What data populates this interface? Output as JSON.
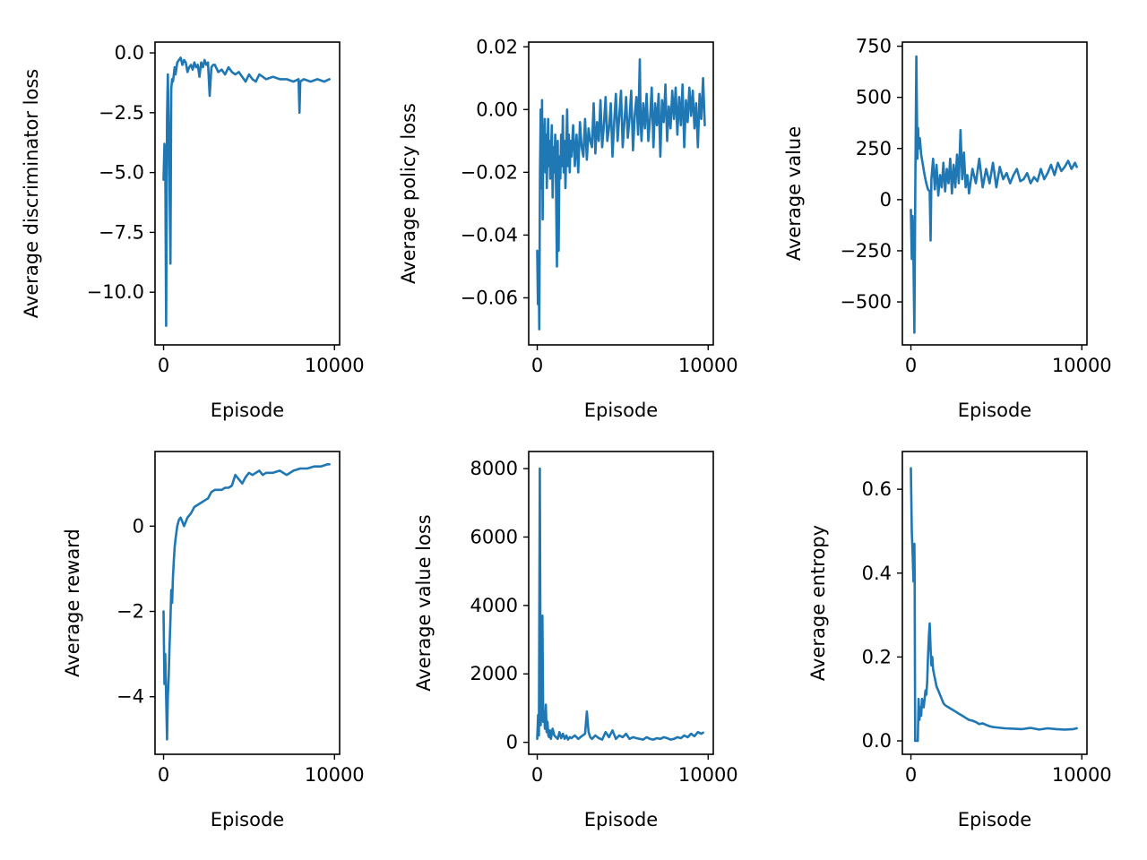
{
  "chart_data": [
    {
      "type": "line",
      "xlabel": "Episode",
      "ylabel": "Average discriminator loss",
      "xlim": [
        -500,
        10300
      ],
      "ylim": [
        -12.2,
        0.45
      ],
      "xticks": [
        0,
        10000
      ],
      "xtick_labels": [
        "0",
        "10000"
      ],
      "yticks": [
        0,
        -2.5,
        -5,
        -7.5,
        -10
      ],
      "ytick_labels": [
        "0.0",
        "−2.5",
        "−5.0",
        "−7.5",
        "−10.0"
      ],
      "color": "#1f77b4",
      "series": [
        {
          "x": [
            0,
            50,
            100,
            150,
            200,
            250,
            300,
            350,
            400,
            450,
            500,
            550,
            600,
            650,
            700,
            800,
            900,
            1000,
            1100,
            1200,
            1300,
            1400,
            1500,
            1600,
            1700,
            1800,
            1900,
            2000,
            2100,
            2200,
            2300,
            2400,
            2500,
            2600,
            2700,
            2800,
            2900,
            3000,
            3200,
            3400,
            3600,
            3800,
            4000,
            4200,
            4400,
            4600,
            4800,
            5000,
            5200,
            5400,
            5600,
            5800,
            6000,
            6400,
            6800,
            7200,
            7600,
            7900,
            7950,
            8000,
            8200,
            8600,
            9000,
            9400,
            9700
          ],
          "y": [
            -5.3,
            -3.8,
            -4.2,
            -11.4,
            -2.7,
            -0.9,
            -3.0,
            -5.5,
            -8.8,
            -1.5,
            -1.1,
            -1.2,
            -0.9,
            -0.6,
            -0.9,
            -0.4,
            -0.3,
            -0.2,
            -0.5,
            -0.3,
            -0.4,
            -0.8,
            -0.6,
            -0.5,
            -0.7,
            -0.4,
            -0.6,
            -0.5,
            -1.0,
            -0.4,
            -0.6,
            -0.3,
            -0.5,
            -0.4,
            -1.8,
            -0.6,
            -0.5,
            -0.5,
            -0.8,
            -0.7,
            -0.9,
            -0.6,
            -0.8,
            -0.9,
            -0.8,
            -1.0,
            -1.2,
            -0.9,
            -1.1,
            -1.2,
            -0.9,
            -1.0,
            -1.1,
            -1.0,
            -1.1,
            -1.1,
            -1.2,
            -1.1,
            -2.5,
            -1.2,
            -1.1,
            -1.2,
            -1.1,
            -1.2,
            -1.1
          ]
        }
      ]
    },
    {
      "type": "line",
      "xlabel": "Episode",
      "ylabel": "Average policy loss",
      "xlim": [
        -500,
        10300
      ],
      "ylim": [
        -0.075,
        0.0215
      ],
      "xticks": [
        0,
        10000
      ],
      "xtick_labels": [
        "0",
        "10000"
      ],
      "yticks": [
        0.02,
        0,
        -0.02,
        -0.04,
        -0.06
      ],
      "ytick_labels": [
        "0.02",
        "0.00",
        "−0.02",
        "−0.04",
        "−0.06"
      ],
      "color": "#1f77b4",
      "series": [
        {
          "x": [
            0,
            40,
            80,
            120,
            160,
            200,
            240,
            280,
            320,
            360,
            400,
            440,
            480,
            520,
            560,
            600,
            640,
            680,
            720,
            760,
            800,
            850,
            900,
            950,
            1000,
            1050,
            1100,
            1150,
            1200,
            1250,
            1300,
            1350,
            1400,
            1450,
            1500,
            1550,
            1600,
            1650,
            1700,
            1750,
            1800,
            1850,
            1900,
            1950,
            2000,
            2100,
            2200,
            2300,
            2400,
            2500,
            2600,
            2700,
            2800,
            2900,
            3000,
            3100,
            3200,
            3300,
            3400,
            3500,
            3600,
            3700,
            3800,
            3900,
            4000,
            4100,
            4200,
            4300,
            4400,
            4500,
            4600,
            4700,
            4800,
            4900,
            5000,
            5100,
            5200,
            5300,
            5400,
            5500,
            5600,
            5700,
            5800,
            5900,
            6000,
            6050,
            6100,
            6200,
            6300,
            6400,
            6500,
            6600,
            6700,
            6800,
            6900,
            7000,
            7100,
            7200,
            7300,
            7400,
            7500,
            7600,
            7700,
            7800,
            7900,
            8000,
            8100,
            8200,
            8300,
            8400,
            8500,
            8600,
            8700,
            8800,
            8900,
            9000,
            9100,
            9200,
            9300,
            9400,
            9500,
            9600,
            9700,
            9800
          ],
          "y": [
            -0.045,
            -0.062,
            -0.048,
            -0.07,
            -0.02,
            0.0,
            -0.025,
            0.003,
            -0.035,
            -0.005,
            -0.015,
            -0.003,
            -0.02,
            -0.008,
            -0.025,
            -0.012,
            -0.003,
            -0.018,
            -0.01,
            -0.022,
            -0.015,
            -0.005,
            -0.028,
            -0.012,
            -0.02,
            -0.008,
            -0.025,
            -0.05,
            -0.01,
            -0.045,
            -0.015,
            -0.022,
            -0.008,
            -0.018,
            -0.002,
            -0.02,
            -0.01,
            -0.025,
            -0.012,
            0.0,
            -0.018,
            -0.008,
            -0.02,
            -0.01,
            -0.015,
            -0.005,
            -0.018,
            -0.008,
            -0.02,
            -0.004,
            -0.012,
            -0.015,
            -0.003,
            -0.016,
            -0.006,
            -0.01,
            -0.012,
            0.002,
            -0.014,
            -0.004,
            -0.01,
            0.003,
            -0.012,
            -0.005,
            0.004,
            -0.01,
            -0.006,
            0.002,
            -0.015,
            -0.004,
            0.005,
            -0.01,
            -0.002,
            0.006,
            -0.012,
            -0.004,
            0.004,
            -0.009,
            -0.003,
            0.006,
            -0.013,
            -0.002,
            0.004,
            -0.008,
            0.016,
            -0.004,
            -0.01,
            0.002,
            -0.006,
            0.005,
            -0.01,
            -0.003,
            0.007,
            -0.012,
            0.002,
            -0.005,
            0.005,
            -0.015,
            0.003,
            -0.004,
            0.008,
            -0.01,
            0.001,
            -0.006,
            0.006,
            -0.003,
            0.007,
            -0.008,
            0.004,
            -0.005,
            0.008,
            -0.012,
            0.003,
            -0.004,
            0.007,
            -0.002,
            0.006,
            -0.006,
            0.002,
            -0.012,
            0.005,
            -0.003,
            0.01,
            -0.005
          ]
        }
      ]
    },
    {
      "type": "line",
      "xlabel": "Episode",
      "ylabel": "Average value",
      "xlim": [
        -500,
        10300
      ],
      "ylim": [
        -710,
        770
      ],
      "xticks": [
        0,
        10000
      ],
      "xtick_labels": [
        "0",
        "10000"
      ],
      "yticks": [
        750,
        500,
        250,
        0,
        -250,
        -500
      ],
      "ytick_labels": [
        "750",
        "500",
        "250",
        "0",
        "−250",
        "−500"
      ],
      "color": "#1f77b4",
      "series": [
        {
          "x": [
            0,
            50,
            100,
            150,
            200,
            260,
            320,
            380,
            420,
            460,
            520,
            600,
            700,
            800,
            900,
            1000,
            1100,
            1150,
            1200,
            1300,
            1400,
            1500,
            1600,
            1700,
            1800,
            1900,
            2000,
            2100,
            2200,
            2300,
            2400,
            2500,
            2600,
            2700,
            2800,
            2900,
            3000,
            3100,
            3200,
            3300,
            3400,
            3600,
            3800,
            4000,
            4200,
            4400,
            4600,
            4800,
            5000,
            5200,
            5400,
            5600,
            5800,
            6000,
            6200,
            6400,
            6600,
            6800,
            7000,
            7200,
            7400,
            7600,
            7800,
            8000,
            8200,
            8400,
            8600,
            8800,
            9000,
            9200,
            9400,
            9600,
            9700
          ],
          "y": [
            -50,
            -290,
            -80,
            -300,
            -650,
            100,
            700,
            200,
            350,
            250,
            300,
            220,
            170,
            120,
            80,
            50,
            40,
            -200,
            100,
            200,
            50,
            170,
            20,
            120,
            60,
            180,
            40,
            150,
            80,
            200,
            30,
            170,
            60,
            220,
            80,
            340,
            100,
            230,
            60,
            120,
            30,
            150,
            80,
            200,
            60,
            150,
            80,
            180,
            60,
            160,
            100,
            130,
            80,
            120,
            150,
            90,
            100,
            130,
            80,
            110,
            90,
            150,
            100,
            130,
            170,
            120,
            180,
            140,
            160,
            190,
            150,
            180,
            160
          ]
        }
      ]
    },
    {
      "type": "line",
      "xlabel": "Episode",
      "ylabel": "Average reward",
      "xlim": [
        -500,
        10300
      ],
      "ylim": [
        -5.35,
        1.75
      ],
      "xticks": [
        0,
        10000
      ],
      "xtick_labels": [
        "0",
        "10000"
      ],
      "yticks": [
        0,
        -2,
        -4
      ],
      "ytick_labels": [
        "0",
        "−2",
        "−4"
      ],
      "color": "#1f77b4",
      "series": [
        {
          "x": [
            0,
            50,
            100,
            150,
            200,
            250,
            300,
            350,
            400,
            450,
            500,
            550,
            600,
            650,
            700,
            800,
            900,
            1000,
            1100,
            1200,
            1300,
            1400,
            1600,
            1800,
            2000,
            2200,
            2400,
            2600,
            2800,
            3000,
            3200,
            3400,
            3600,
            3800,
            4000,
            4200,
            4400,
            4600,
            4800,
            5000,
            5200,
            5400,
            5600,
            5800,
            6000,
            6400,
            6800,
            7200,
            7600,
            8000,
            8400,
            8800,
            9200,
            9600,
            9700
          ],
          "y": [
            -2.0,
            -3.7,
            -3.0,
            -4.0,
            -5.0,
            -4.0,
            -3.5,
            -2.8,
            -2.2,
            -1.5,
            -1.8,
            -1.2,
            -0.8,
            -0.5,
            -0.3,
            0.0,
            0.15,
            0.2,
            0.1,
            0.0,
            0.1,
            0.2,
            0.3,
            0.45,
            0.5,
            0.55,
            0.6,
            0.65,
            0.8,
            0.85,
            0.85,
            0.85,
            0.9,
            0.9,
            0.95,
            1.2,
            1.1,
            1.0,
            1.15,
            1.25,
            1.2,
            1.25,
            1.3,
            1.2,
            1.25,
            1.25,
            1.3,
            1.2,
            1.3,
            1.35,
            1.35,
            1.4,
            1.4,
            1.45,
            1.45
          ]
        }
      ]
    },
    {
      "type": "line",
      "xlabel": "Episode",
      "ylabel": "Average value loss",
      "xlim": [
        -500,
        10300
      ],
      "ylim": [
        -350,
        8500
      ],
      "xticks": [
        0,
        10000
      ],
      "xtick_labels": [
        "0",
        "10000"
      ],
      "yticks": [
        8000,
        6000,
        4000,
        2000,
        0
      ],
      "ytick_labels": [
        "8000",
        "6000",
        "4000",
        "2000",
        "0"
      ],
      "color": "#1f77b4",
      "series": [
        {
          "x": [
            0,
            50,
            100,
            150,
            200,
            250,
            300,
            350,
            400,
            450,
            500,
            550,
            600,
            650,
            700,
            750,
            800,
            900,
            1000,
            1100,
            1200,
            1300,
            1400,
            1500,
            1600,
            1700,
            1800,
            1900,
            2000,
            2200,
            2400,
            2600,
            2800,
            2900,
            3000,
            3100,
            3200,
            3400,
            3600,
            3800,
            4000,
            4200,
            4400,
            4600,
            4800,
            5000,
            5200,
            5400,
            5600,
            5800,
            6000,
            6200,
            6400,
            6600,
            6800,
            7000,
            7200,
            7400,
            7600,
            7800,
            8000,
            8200,
            8400,
            8600,
            8800,
            9000,
            9200,
            9400,
            9600,
            9700
          ],
          "y": [
            100,
            800,
            200,
            8000,
            500,
            1200,
            3700,
            600,
            900,
            400,
            1100,
            300,
            600,
            200,
            150,
            350,
            100,
            400,
            200,
            150,
            100,
            300,
            120,
            250,
            100,
            200,
            80,
            150,
            120,
            200,
            100,
            180,
            250,
            900,
            300,
            150,
            100,
            200,
            120,
            80,
            300,
            150,
            350,
            100,
            200,
            150,
            250,
            100,
            150,
            120,
            100,
            80,
            150,
            100,
            80,
            120,
            100,
            150,
            120,
            80,
            100,
            150,
            120,
            200,
            150,
            250,
            180,
            300,
            250,
            280
          ]
        }
      ]
    },
    {
      "type": "line",
      "xlabel": "Episode",
      "ylabel": "Average entropy",
      "xlim": [
        -500,
        10300
      ],
      "ylim": [
        -0.032,
        0.69
      ],
      "xticks": [
        0,
        10000
      ],
      "xtick_labels": [
        "0",
        "10000"
      ],
      "yticks": [
        0.6,
        0.4,
        0.2,
        0
      ],
      "ytick_labels": [
        "0.6",
        "0.4",
        "0.2",
        "0.0"
      ],
      "color": "#1f77b4",
      "series": [
        {
          "x": [
            0,
            50,
            100,
            150,
            200,
            220,
            250,
            300,
            350,
            400,
            450,
            500,
            550,
            600,
            650,
            700,
            750,
            800,
            850,
            900,
            950,
            1000,
            1050,
            1100,
            1150,
            1200,
            1250,
            1300,
            1400,
            1500,
            1600,
            1700,
            1800,
            1900,
            2000,
            2200,
            2400,
            2600,
            2800,
            3000,
            3200,
            3400,
            3600,
            3800,
            4000,
            4200,
            4400,
            4600,
            4800,
            5000,
            5500,
            6000,
            6500,
            7000,
            7500,
            8000,
            8500,
            9000,
            9500,
            9700
          ],
          "y": [
            0.65,
            0.5,
            0.45,
            0.38,
            0.47,
            0.4,
            0.0,
            0.0,
            0.0,
            0.0,
            0.1,
            0.05,
            0.08,
            0.06,
            0.1,
            0.09,
            0.08,
            0.1,
            0.12,
            0.11,
            0.14,
            0.2,
            0.25,
            0.28,
            0.22,
            0.18,
            0.2,
            0.17,
            0.15,
            0.13,
            0.12,
            0.11,
            0.1,
            0.09,
            0.085,
            0.08,
            0.075,
            0.07,
            0.065,
            0.06,
            0.055,
            0.05,
            0.048,
            0.045,
            0.04,
            0.042,
            0.038,
            0.035,
            0.033,
            0.032,
            0.03,
            0.029,
            0.028,
            0.031,
            0.027,
            0.03,
            0.028,
            0.027,
            0.028,
            0.03
          ]
        }
      ]
    }
  ]
}
